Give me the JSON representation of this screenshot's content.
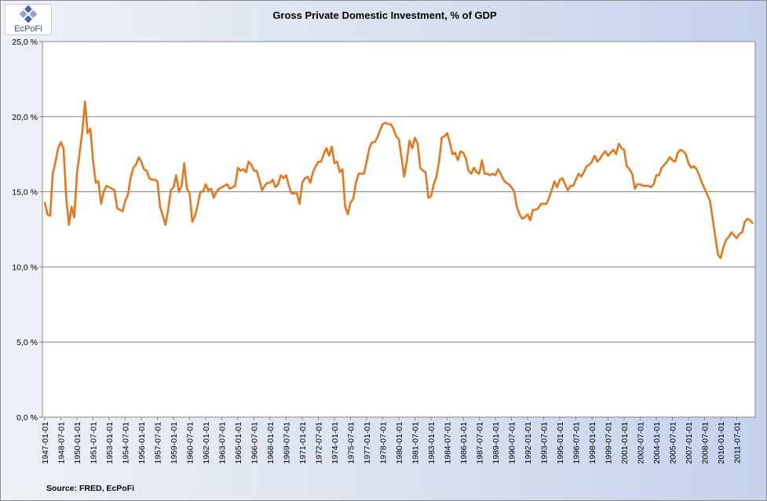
{
  "chart_data": {
    "type": "line",
    "title": "Gross Private Domestic Investment, % of GDP",
    "source": "Source: FRED,  EcPoFi",
    "logo_text": "EcPoFi",
    "line_color": "#e8761c",
    "grid": true,
    "ylim": [
      0,
      25
    ],
    "yticks": [
      "0,0 %",
      "5,0 %",
      "10,0 %",
      "15,0 %",
      "20,0 %",
      "25,0 %"
    ],
    "xticks": [
      "1947-01-01",
      "1948-07-01",
      "1950-01-01",
      "1951-07-01",
      "1953-01-01",
      "1954-07-01",
      "1956-01-01",
      "1957-07-01",
      "1959-01-01",
      "1960-07-01",
      "1962-01-01",
      "1963-07-01",
      "1965-01-01",
      "1966-07-01",
      "1968-01-01",
      "1969-07-01",
      "1971-01-01",
      "1972-07-01",
      "1974-01-01",
      "1975-07-01",
      "1977-01-01",
      "1978-07-01",
      "1980-01-01",
      "1981-07-01",
      "1983-01-01",
      "1984-07-01",
      "1986-01-01",
      "1987-07-01",
      "1989-01-01",
      "1990-07-01",
      "1992-01-01",
      "1993-07-01",
      "1995-01-01",
      "1996-07-01",
      "1998-01-01",
      "1999-07-01",
      "2001-01-01",
      "2002-07-01",
      "2004-01-01",
      "2005-07-01",
      "2007-01-01",
      "2008-07-01",
      "2010-01-01",
      "2011-07-01"
    ],
    "series": [
      {
        "start": "1947-01-01",
        "frequency": "quarterly",
        "values": [
          14.3,
          13.5,
          13.4,
          16.2,
          17.0,
          17.9,
          18.3,
          17.9,
          14.6,
          12.8,
          14.0,
          13.3,
          16.2,
          17.6,
          19.0,
          21.0,
          18.9,
          19.2,
          17.1,
          15.6,
          15.7,
          14.2,
          15.0,
          15.4,
          15.3,
          15.2,
          15.1,
          13.9,
          13.8,
          13.7,
          14.4,
          14.8,
          15.9,
          16.6,
          16.8,
          17.3,
          17.0,
          16.5,
          16.4,
          15.9,
          15.8,
          15.8,
          15.7,
          14.0,
          13.4,
          12.8,
          13.8,
          15.1,
          15.3,
          16.1,
          15.0,
          15.4,
          16.9,
          15.2,
          14.9,
          13.0,
          13.4,
          14.1,
          15.0,
          15.0,
          15.5,
          15.1,
          15.2,
          14.6,
          15.0,
          15.2,
          15.3,
          15.4,
          15.5,
          15.2,
          15.3,
          15.4,
          16.6,
          16.4,
          16.5,
          16.3,
          17.0,
          16.8,
          16.4,
          16.4,
          15.8,
          15.1,
          15.4,
          15.6,
          15.6,
          15.8,
          15.3,
          15.5,
          16.1,
          15.9,
          16.1,
          15.4,
          14.9,
          14.9,
          14.9,
          14.2,
          15.6,
          15.9,
          16.0,
          15.6,
          16.3,
          16.7,
          17.0,
          17.0,
          17.5,
          17.9,
          17.4,
          18.0,
          16.9,
          17.0,
          16.3,
          16.5,
          14.0,
          13.5,
          14.3,
          14.5,
          15.6,
          16.2,
          16.2,
          16.2,
          17.0,
          17.9,
          18.3,
          18.3,
          18.6,
          19.1,
          19.5,
          19.6,
          19.5,
          19.5,
          19.2,
          18.7,
          18.5,
          17.3,
          16.0,
          17.1,
          18.4,
          17.9,
          18.6,
          18.2,
          16.6,
          16.4,
          16.3,
          14.6,
          14.7,
          15.5,
          16.0,
          17.0,
          18.6,
          18.7,
          18.9,
          18.3,
          17.5,
          17.6,
          17.1,
          17.7,
          17.6,
          17.2,
          16.4,
          16.2,
          16.6,
          16.3,
          16.2,
          17.1,
          16.2,
          16.2,
          16.1,
          16.2,
          16.1,
          16.5,
          16.2,
          15.8,
          15.6,
          15.5,
          15.3,
          15.0,
          14.0,
          13.5,
          13.2,
          13.3,
          13.5,
          13.1,
          13.8,
          13.8,
          13.9,
          14.2,
          14.2,
          14.2,
          14.6,
          15.1,
          15.7,
          15.3,
          15.8,
          15.9,
          15.5,
          15.1,
          15.4,
          15.4,
          15.8,
          16.2,
          16.0,
          16.3,
          16.7,
          16.8,
          17.0,
          17.4,
          17.0,
          17.2,
          17.5,
          17.7,
          17.4,
          17.6,
          17.8,
          17.5,
          18.2,
          17.9,
          17.8,
          16.7,
          16.5,
          16.2,
          15.2,
          15.5,
          15.5,
          15.4,
          15.4,
          15.4,
          15.3,
          15.5,
          16.1,
          16.1,
          16.6,
          16.8,
          17.0,
          17.3,
          17.1,
          17.0,
          17.6,
          17.8,
          17.7,
          17.5,
          16.9,
          16.6,
          16.7,
          16.5,
          16.1,
          15.6,
          15.2,
          14.8,
          14.4,
          13.2,
          12.0,
          10.8,
          10.6,
          11.3,
          11.8,
          12.0,
          12.3,
          12.1,
          11.9,
          12.2,
          12.3,
          13.0,
          13.2,
          13.1,
          12.9
        ]
      }
    ]
  }
}
